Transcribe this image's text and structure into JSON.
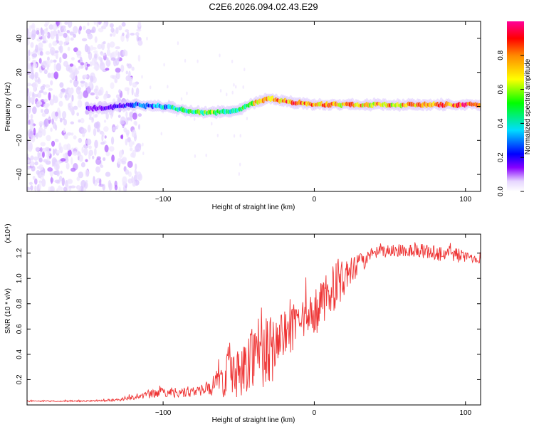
{
  "title": "C2E6.2026.094.02.43.E29",
  "chart_data": [
    {
      "type": "heatmap",
      "name": "spectrogram",
      "xlabel": "Height of straight line (km)",
      "ylabel": "Frequency (Hz)",
      "xlim": [
        -190,
        110
      ],
      "ylim": [
        -50,
        50
      ],
      "xticks": [
        -100,
        0,
        100
      ],
      "yticks": [
        -40,
        -20,
        0,
        20,
        40
      ],
      "colorbar": {
        "label": "Normalized spectral amplitude",
        "range": [
          0,
          1
        ],
        "ticks": [
          0.0,
          0.2,
          0.4,
          0.6,
          0.8
        ],
        "colormap": [
          "#ffffff",
          "#d9c2ff",
          "#8800ff",
          "#0000ff",
          "#00ffff",
          "#00ff00",
          "#ffff00",
          "#ff8800",
          "#ff0000",
          "#ff00aa"
        ]
      },
      "ridge": {
        "x": [
          -140,
          -120,
          -100,
          -80,
          -70,
          -60,
          -50,
          -40,
          -30,
          -20,
          0,
          20,
          40,
          60,
          80,
          100,
          110
        ],
        "freq_hz": [
          -1,
          1,
          0,
          -3,
          -4,
          -3,
          -2,
          2,
          5,
          3,
          1,
          1,
          1,
          1,
          1,
          1,
          1
        ],
        "intensity": [
          0.25,
          0.35,
          0.45,
          0.55,
          0.65,
          0.55,
          0.5,
          0.7,
          0.8,
          0.85,
          0.85,
          0.8,
          0.75,
          0.8,
          0.85,
          0.9,
          0.8
        ]
      }
    },
    {
      "type": "line",
      "name": "snr",
      "xlabel": "Height of straight line (km)",
      "ylabel": "SNR (10 * v/v)",
      "scale_label": "(x10⁴)",
      "xlim": [
        -190,
        110
      ],
      "ylim": [
        0,
        1.35
      ],
      "xticks": [
        -100,
        0,
        100
      ],
      "yticks": [
        0.2,
        0.4,
        0.6,
        0.8,
        1.0,
        1.2
      ],
      "color": "#ee3333",
      "series": [
        {
          "name": "SNR",
          "x": [
            -190,
            -170,
            -150,
            -130,
            -120,
            -110,
            -100,
            -90,
            -80,
            -70,
            -60,
            -55,
            -50,
            -45,
            -40,
            -35,
            -30,
            -25,
            -20,
            -15,
            -10,
            -5,
            0,
            5,
            10,
            15,
            20,
            25,
            30,
            40,
            50,
            60,
            70,
            80,
            90,
            100,
            110
          ],
          "y": [
            0.03,
            0.03,
            0.03,
            0.04,
            0.06,
            0.08,
            0.1,
            0.1,
            0.1,
            0.13,
            0.2,
            0.25,
            0.25,
            0.3,
            0.45,
            0.45,
            0.4,
            0.5,
            0.55,
            0.6,
            0.63,
            0.68,
            0.72,
            0.78,
            0.9,
            0.95,
            1.0,
            1.05,
            1.12,
            1.2,
            1.22,
            1.22,
            1.22,
            1.2,
            1.2,
            1.17,
            1.15
          ],
          "noise": [
            0.005,
            0.005,
            0.005,
            0.01,
            0.02,
            0.03,
            0.04,
            0.04,
            0.04,
            0.05,
            0.15,
            0.18,
            0.2,
            0.2,
            0.3,
            0.3,
            0.3,
            0.22,
            0.2,
            0.2,
            0.16,
            0.16,
            0.16,
            0.2,
            0.2,
            0.18,
            0.14,
            0.12,
            0.08,
            0.05,
            0.05,
            0.05,
            0.06,
            0.06,
            0.08,
            0.04,
            0.03
          ]
        }
      ]
    }
  ]
}
